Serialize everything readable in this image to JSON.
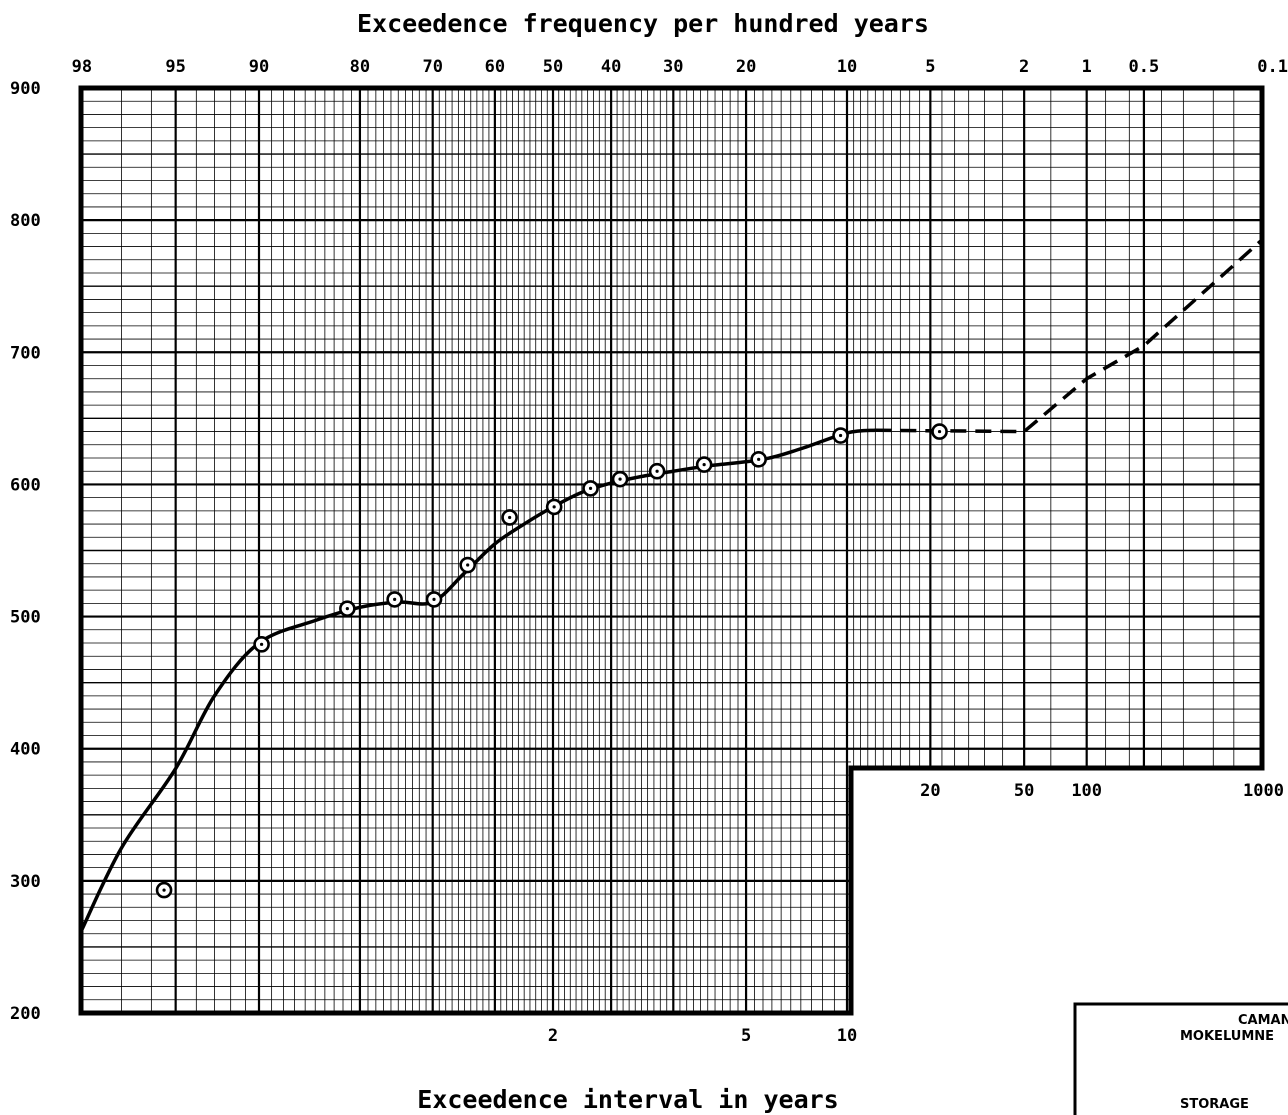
{
  "chart_data": {
    "type": "line",
    "title": "Exceedence frequency per hundred years",
    "xlabel": "Exceedence interval in years",
    "ylabel": "",
    "y_scale": "linear",
    "ylim": [
      200,
      900
    ],
    "x_scale": "probability",
    "yticks": [
      "900",
      "800",
      "700",
      "600",
      "500",
      "400",
      "300",
      "200"
    ],
    "top_ticks": [
      "98",
      "95",
      "90",
      "80",
      "70",
      "60",
      "50",
      "40",
      "30",
      "20",
      "10",
      "5",
      "2",
      "1",
      "0.5",
      "0.1"
    ],
    "bottom_ticks": [
      "2",
      "5",
      "10"
    ],
    "inner_ticks": [
      "20",
      "50",
      "100",
      "1000"
    ],
    "grid": true,
    "series": [
      {
        "style": "solid",
        "points": [
          {
            "x": 98,
            "y": 263
          },
          {
            "x": 97,
            "y": 325
          },
          {
            "x": 95,
            "y": 385
          },
          {
            "x": 93,
            "y": 440
          },
          {
            "x": 90,
            "y": 480
          },
          {
            "x": 85,
            "y": 497
          },
          {
            "x": 80,
            "y": 507
          },
          {
            "x": 75,
            "y": 511
          },
          {
            "x": 70,
            "y": 511
          },
          {
            "x": 65,
            "y": 533
          },
          {
            "x": 60,
            "y": 555
          },
          {
            "x": 55,
            "y": 570
          },
          {
            "x": 50,
            "y": 583
          },
          {
            "x": 45,
            "y": 594
          },
          {
            "x": 40,
            "y": 601
          },
          {
            "x": 35,
            "y": 606
          },
          {
            "x": 30,
            "y": 610
          },
          {
            "x": 25,
            "y": 614
          },
          {
            "x": 18,
            "y": 619
          },
          {
            "x": 14,
            "y": 627
          },
          {
            "x": 10,
            "y": 639
          },
          {
            "x": 8,
            "y": 641
          }
        ]
      },
      {
        "style": "dashed",
        "points": [
          {
            "x": 8,
            "y": 641
          },
          {
            "x": 2,
            "y": 640
          },
          {
            "x": 1,
            "y": 680
          },
          {
            "x": 0.5,
            "y": 705
          },
          {
            "x": 0.1,
            "y": 785
          }
        ]
      },
      {
        "style": "markers",
        "points": [
          {
            "x": 95.5,
            "y": 293
          },
          {
            "x": 89.8,
            "y": 479
          },
          {
            "x": 81.5,
            "y": 506
          },
          {
            "x": 75.5,
            "y": 513
          },
          {
            "x": 69.8,
            "y": 513
          },
          {
            "x": 64.5,
            "y": 539
          },
          {
            "x": 57.5,
            "y": 575
          },
          {
            "x": 49.8,
            "y": 583
          },
          {
            "x": 43.5,
            "y": 597
          },
          {
            "x": 38.5,
            "y": 604
          },
          {
            "x": 32.5,
            "y": 610
          },
          {
            "x": 25.5,
            "y": 615
          },
          {
            "x": 18.5,
            "y": 619
          },
          {
            "x": 10.5,
            "y": 637
          },
          {
            "x": 4.6,
            "y": 640
          }
        ]
      }
    ]
  },
  "legend_box": {
    "line1": "CAMAN",
    "line2": "MOKELUMNE",
    "line3": "STORAGE"
  }
}
